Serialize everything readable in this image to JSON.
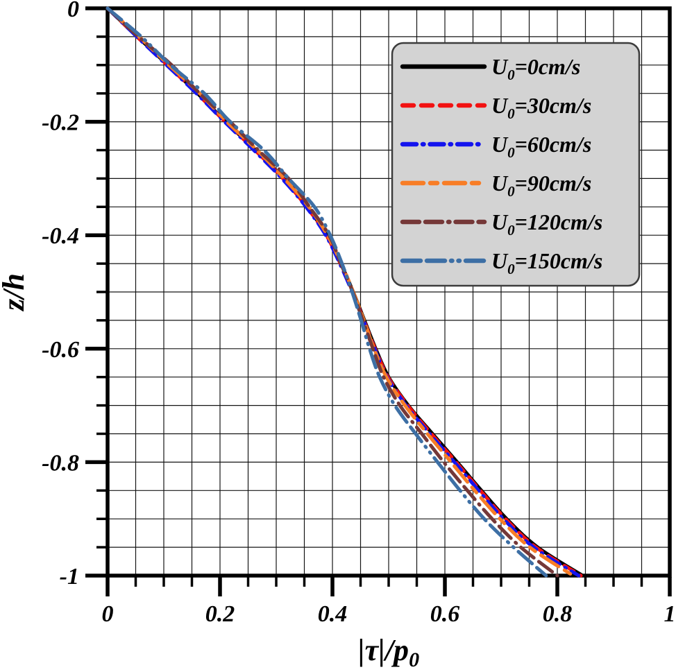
{
  "chart_data": {
    "type": "line",
    "title": "",
    "xlabel_main": "|τ|/p",
    "xlabel_sub": "0",
    "ylabel": "z/h",
    "xlim": [
      0,
      1
    ],
    "ylim": [
      -1,
      0
    ],
    "grid": "on",
    "grid_step": 0.05,
    "minor_tick_step": 0.05,
    "x_tick_values": [
      0,
      0.2,
      0.4,
      0.6,
      0.8,
      1
    ],
    "x_tick_labels": [
      "0",
      "0.2",
      "0.4",
      "0.6",
      "0.8",
      "1"
    ],
    "y_tick_values": [
      0,
      -0.2,
      -0.4,
      -0.6,
      -0.8,
      -1
    ],
    "y_tick_labels": [
      "0",
      "-0.2",
      "-0.4",
      "-0.6",
      "-0.8",
      "-1"
    ],
    "legend_position": "upper-right",
    "z": [
      0,
      -0.05,
      -0.1,
      -0.15,
      -0.2,
      -0.25,
      -0.3,
      -0.35,
      -0.4,
      -0.45,
      -0.5,
      -0.55,
      -0.6,
      -0.65,
      -0.7,
      -0.75,
      -0.8,
      -0.85,
      -0.9,
      -0.95,
      -1
    ],
    "series": [
      {
        "name_prefix": "U",
        "name_sub": "0",
        "name_rest": "=0cm/s",
        "full_name": "U0=0cm/s",
        "color": "#000000",
        "dash": [],
        "values": [
          0,
          0.053,
          0.107,
          0.16,
          0.21,
          0.263,
          0.313,
          0.355,
          0.39,
          0.415,
          0.437,
          0.457,
          0.477,
          0.5,
          0.535,
          0.578,
          0.622,
          0.665,
          0.71,
          0.765,
          0.845
        ]
      },
      {
        "name_prefix": "U",
        "name_sub": "0",
        "name_rest": "=30cm/s",
        "full_name": "U0=30cm/s",
        "color": "#f21212",
        "dash": [
          16,
          11
        ],
        "values": [
          0,
          0.052,
          0.106,
          0.159,
          0.209,
          0.262,
          0.312,
          0.354,
          0.389,
          0.414,
          0.436,
          0.456,
          0.476,
          0.499,
          0.534,
          0.576,
          0.62,
          0.663,
          0.708,
          0.762,
          0.842
        ]
      },
      {
        "name_prefix": "U",
        "name_sub": "0",
        "name_rest": "=60cm/s",
        "full_name": "U0=60cm/s",
        "color": "#1414ee",
        "dash": [
          20,
          9,
          1.5,
          9
        ],
        "values": [
          0,
          0.052,
          0.105,
          0.158,
          0.208,
          0.26,
          0.31,
          0.353,
          0.388,
          0.413,
          0.435,
          0.455,
          0.475,
          0.497,
          0.531,
          0.573,
          0.617,
          0.66,
          0.704,
          0.758,
          0.838
        ]
      },
      {
        "name_prefix": "U",
        "name_sub": "0",
        "name_rest": "=90cm/s",
        "full_name": "U0=90cm/s",
        "color": "#f87d26",
        "dash": [
          30,
          10,
          10,
          10
        ],
        "values": [
          0,
          0.056,
          0.109,
          0.164,
          0.212,
          0.266,
          0.314,
          0.358,
          0.391,
          0.416,
          0.437,
          0.456,
          0.474,
          0.496,
          0.529,
          0.569,
          0.611,
          0.653,
          0.698,
          0.751,
          0.828
        ]
      },
      {
        "name_prefix": "U",
        "name_sub": "0",
        "name_rest": "=120cm/s",
        "full_name": "U0=120cm/s",
        "color": "#753838",
        "dash": [
          24,
          9,
          24,
          9,
          1.5,
          9
        ],
        "values": [
          0,
          0.055,
          0.114,
          0.164,
          0.218,
          0.268,
          0.322,
          0.359,
          0.394,
          0.415,
          0.436,
          0.454,
          0.472,
          0.491,
          0.52,
          0.559,
          0.598,
          0.64,
          0.684,
          0.735,
          0.8
        ]
      },
      {
        "name_prefix": "U",
        "name_sub": "0",
        "name_rest": "=150cm/s",
        "full_name": "U0=150cm/s",
        "color": "#3d6fa5",
        "dash": [
          26,
          9,
          26,
          9,
          1.5,
          9,
          1.5,
          9
        ],
        "values": [
          0,
          0.06,
          0.112,
          0.172,
          0.218,
          0.278,
          0.322,
          0.368,
          0.396,
          0.417,
          0.435,
          0.451,
          0.466,
          0.484,
          0.511,
          0.548,
          0.587,
          0.627,
          0.67,
          0.722,
          0.78
        ]
      }
    ],
    "colors": {
      "grid": "#141414",
      "axis": "#000000",
      "legend_bg": "#d3d3d3",
      "legend_border": "#3c3c3c",
      "text": "#000000"
    }
  }
}
